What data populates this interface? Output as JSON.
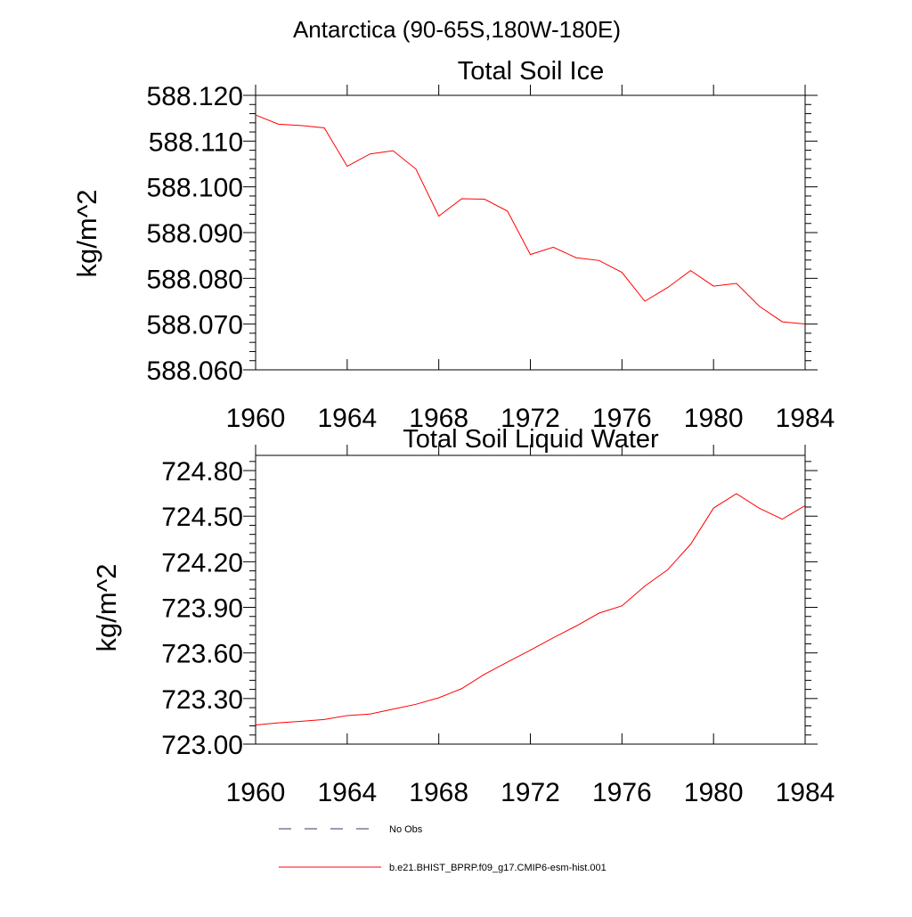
{
  "suptitle": "Antarctica (90-65S,180W-180E)",
  "legend": {
    "placement": "bottom",
    "entries": [
      {
        "label": "No Obs",
        "style": "dashed",
        "color": "#3a3a66"
      },
      {
        "label": "b.e21.BHIST_BPRP.f09_g17.CMIP6-esm-hist.001",
        "style": "solid",
        "color": "#ff0000"
      }
    ]
  },
  "chart_data": [
    {
      "type": "line",
      "title": "Total Soil Ice",
      "ylabel": "kg/m^2",
      "xlabel": "",
      "xlim": [
        1960,
        1984
      ],
      "ylim": [
        588.06,
        588.12
      ],
      "xticks": [
        "1960",
        "1964",
        "1968",
        "1972",
        "1976",
        "1980",
        "1984"
      ],
      "yticks": [
        "588.060",
        "588.070",
        "588.080",
        "588.090",
        "588.100",
        "588.110",
        "588.120"
      ],
      "grid": false,
      "series": [
        {
          "color": "#ff0000",
          "x": [
            1960,
            1961,
            1962,
            1963,
            1964,
            1965,
            1966,
            1967,
            1968,
            1969,
            1970,
            1971,
            1972,
            1973,
            1974,
            1975,
            1976,
            1977,
            1978,
            1979,
            1980,
            1981,
            1982,
            1983,
            1984
          ],
          "values": [
            588.1157,
            588.1137,
            588.1134,
            588.1129,
            588.1045,
            588.1072,
            588.1079,
            588.1039,
            588.0936,
            588.0974,
            588.0973,
            588.0947,
            588.0852,
            588.0868,
            588.0845,
            588.0839,
            588.0813,
            588.075,
            588.078,
            588.0817,
            588.0783,
            588.0789,
            588.0739,
            588.0705,
            588.07
          ]
        }
      ]
    },
    {
      "type": "line",
      "title": "Total Soil Liquid Water",
      "ylabel": "kg/m^2",
      "xlabel": "",
      "xlim": [
        1960,
        1984
      ],
      "ylim": [
        723.0,
        724.9
      ],
      "xticks": [
        "1960",
        "1964",
        "1968",
        "1972",
        "1976",
        "1980",
        "1984"
      ],
      "yticks": [
        "723.00",
        "723.30",
        "723.60",
        "723.90",
        "724.20",
        "724.50",
        "724.80"
      ],
      "grid": false,
      "series": [
        {
          "color": "#ff0000",
          "x": [
            1960,
            1961,
            1962,
            1963,
            1964,
            1965,
            1966,
            1967,
            1968,
            1969,
            1970,
            1971,
            1972,
            1973,
            1974,
            1975,
            1976,
            1977,
            1978,
            1979,
            1980,
            1981,
            1982,
            1983,
            1984
          ],
          "values": [
            723.126,
            723.14,
            723.15,
            723.162,
            723.188,
            723.198,
            723.23,
            723.262,
            723.305,
            723.365,
            723.46,
            723.54,
            723.618,
            723.7,
            723.777,
            723.862,
            723.91,
            724.04,
            724.148,
            724.315,
            724.553,
            724.648,
            724.552,
            724.48,
            724.57
          ]
        }
      ]
    }
  ]
}
